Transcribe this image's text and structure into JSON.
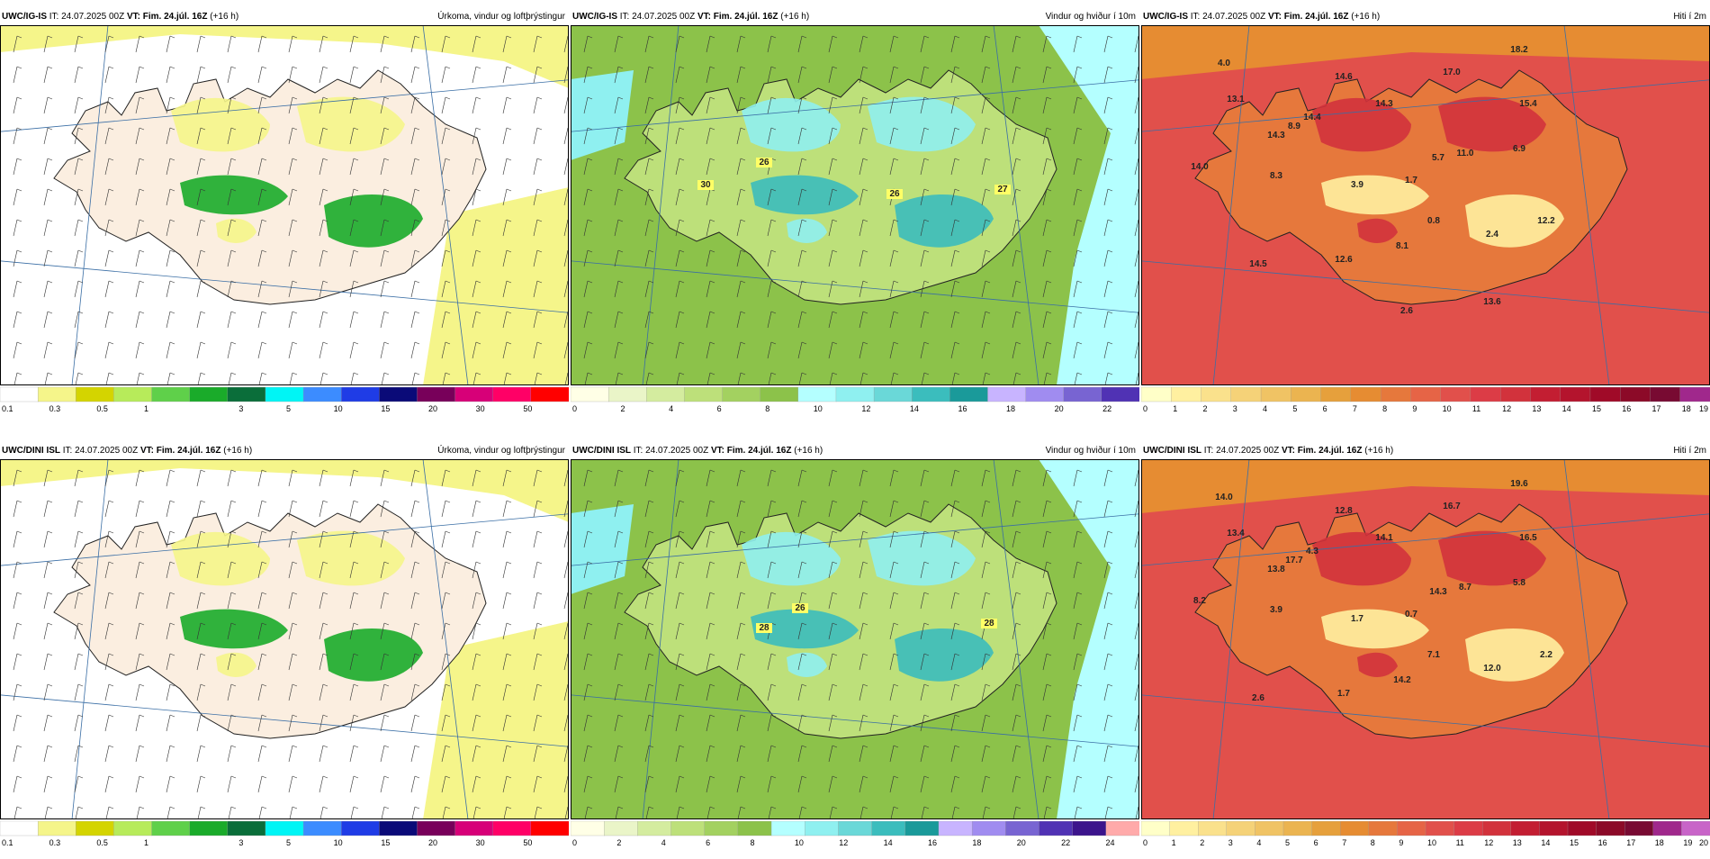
{
  "panels": [
    {
      "id": "p1",
      "model": "UWC/IG-IS",
      "it_label": "IT:",
      "it_value": "24.07.2025 00Z",
      "vt_label": "VT:",
      "vt_value": "Fim. 24.júl. 16Z",
      "lead": "(+16 h)",
      "title": "Úrkoma, vindur og loftþrýstingur",
      "type": "precip",
      "legend": {
        "colors": [
          "#ffffff",
          "#f5f58a",
          "#d4d400",
          "#b7eb5a",
          "#5fd04a",
          "#1aab2a",
          "#0a6e3a",
          "#00f5f5",
          "#3c8cff",
          "#1f3ce6",
          "#0a0a78",
          "#78005a",
          "#d70078",
          "#ff0066",
          "#ff0000"
        ],
        "labels": [
          "0.1",
          "0.3",
          "0.5",
          "1",
          "3",
          "5",
          "10",
          "15",
          "20",
          "30",
          "50"
        ]
      },
      "values": []
    },
    {
      "id": "p2",
      "model": "UWC/IG-IS",
      "it_label": "IT:",
      "it_value": "24.07.2025 00Z",
      "vt_label": "VT:",
      "vt_value": "Fim. 24.júl. 16Z",
      "lead": "(+16 h)",
      "title": "Vindur og hviður í 10m",
      "type": "wind",
      "legend": {
        "colors": [
          "#ffffe6",
          "#eaf5c8",
          "#d4ec9f",
          "#bde07a",
          "#a3d160",
          "#8cc24a",
          "#b4ffff",
          "#8ff0f0",
          "#6ad8d8",
          "#3bbdbd",
          "#1a9a9a",
          "#c8b4ff",
          "#a08cf0",
          "#7864d2",
          "#5032b4"
        ],
        "labels": [
          "0",
          "2",
          "4",
          "6",
          "8",
          "10",
          "12",
          "14",
          "16",
          "18",
          "20",
          "22"
        ]
      },
      "values": [
        "30",
        "26",
        "26",
        "27"
      ]
    },
    {
      "id": "p3",
      "model": "UWC/IG-IS",
      "it_label": "IT:",
      "it_value": "24.07.2025 00Z",
      "vt_label": "VT:",
      "vt_value": "Fim. 24.júl. 16Z",
      "lead": "(+16 h)",
      "title": "Hiti í 2m",
      "type": "temp",
      "legend": {
        "colors": [
          "#ffffc8",
          "#fff0a0",
          "#fae18c",
          "#f5d278",
          "#f0c364",
          "#ebb450",
          "#e6a03c",
          "#e68c32",
          "#e6783c",
          "#e66446",
          "#e1504b",
          "#dc3c46",
          "#d2323c",
          "#c31e32",
          "#b4142d",
          "#a00a28",
          "#8c0a28",
          "#780a32",
          "#a0288c"
        ],
        "labels": [
          "0",
          "1",
          "2",
          "3",
          "4",
          "5",
          "6",
          "7",
          "8",
          "9",
          "10",
          "11",
          "12",
          "13",
          "14",
          "15",
          "16",
          "17",
          "18",
          "19"
        ]
      },
      "values": [
        "4.0",
        "13.1",
        "14.6",
        "17.0",
        "18.2",
        "14.3",
        "14.4",
        "15.4",
        "8.9",
        "14.3",
        "11.0",
        "6.9",
        "5.7",
        "14.0",
        "8.3",
        "3.9",
        "1.7",
        "0.8",
        "12.2",
        "2.4",
        "8.1",
        "12.6",
        "14.5",
        "13.6",
        "2.6"
      ]
    },
    {
      "id": "p4",
      "model": "UWC/DINI ISL",
      "it_label": "IT:",
      "it_value": "24.07.2025 00Z",
      "vt_label": "VT:",
      "vt_value": "Fim. 24.júl. 16Z",
      "lead": "(+16 h)",
      "title": "Úrkoma, vindur og loftþrýstingur",
      "type": "precip",
      "legend": {
        "colors": [
          "#ffffff",
          "#f5f58a",
          "#d4d400",
          "#b7eb5a",
          "#5fd04a",
          "#1aab2a",
          "#0a6e3a",
          "#00f5f5",
          "#3c8cff",
          "#1f3ce6",
          "#0a0a78",
          "#78005a",
          "#d70078",
          "#ff0066",
          "#ff0000"
        ],
        "labels": [
          "0.1",
          "0.3",
          "0.5",
          "1",
          "3",
          "5",
          "10",
          "15",
          "20",
          "30",
          "50"
        ]
      },
      "values": []
    },
    {
      "id": "p5",
      "model": "UWC/DINI ISL",
      "it_label": "IT:",
      "it_value": "24.07.2025 00Z",
      "vt_label": "VT:",
      "vt_value": "Fim. 24.júl. 16Z",
      "lead": "(+16 h)",
      "title": "Vindur og hviður í 10m",
      "type": "wind",
      "legend": {
        "colors": [
          "#ffffe6",
          "#eaf5c8",
          "#d4ec9f",
          "#bde07a",
          "#a3d160",
          "#8cc24a",
          "#b4ffff",
          "#8ff0f0",
          "#6ad8d8",
          "#3bbdbd",
          "#1a9a9a",
          "#c8b4ff",
          "#a08cf0",
          "#7864d2",
          "#5032b4",
          "#3c148c",
          "#ffaaaa"
        ],
        "labels": [
          "0",
          "2",
          "4",
          "6",
          "8",
          "10",
          "12",
          "14",
          "16",
          "18",
          "20",
          "22",
          "24"
        ]
      },
      "values": [
        "28",
        "26",
        "28"
      ]
    },
    {
      "id": "p6",
      "model": "UWC/DINI ISL",
      "it_label": "IT:",
      "it_value": "24.07.2025 00Z",
      "vt_label": "VT:",
      "vt_value": "Fim. 24.júl. 16Z",
      "lead": "(+16 h)",
      "title": "Hiti í 2m",
      "type": "temp",
      "legend": {
        "colors": [
          "#ffffc8",
          "#fff0a0",
          "#fae18c",
          "#f5d278",
          "#f0c364",
          "#ebb450",
          "#e6a03c",
          "#e68c32",
          "#e6783c",
          "#e66446",
          "#e1504b",
          "#dc3c46",
          "#d2323c",
          "#c31e32",
          "#b4142d",
          "#a00a28",
          "#8c0a28",
          "#780a32",
          "#a0288c",
          "#c864c8"
        ],
        "labels": [
          "0",
          "1",
          "2",
          "3",
          "4",
          "5",
          "6",
          "7",
          "8",
          "9",
          "10",
          "11",
          "12",
          "13",
          "14",
          "15",
          "16",
          "17",
          "18",
          "19",
          "20"
        ]
      },
      "values": [
        "14.0",
        "13.4",
        "12.8",
        "16.7",
        "19.6",
        "14.1",
        "4.3",
        "16.5",
        "17.7",
        "13.8",
        "8.7",
        "5.8",
        "14.3",
        "8.2",
        "3.9",
        "1.7",
        "0.7",
        "7.1",
        "2.2",
        "12.0",
        "14.2",
        "1.7",
        "2.6"
      ]
    }
  ]
}
